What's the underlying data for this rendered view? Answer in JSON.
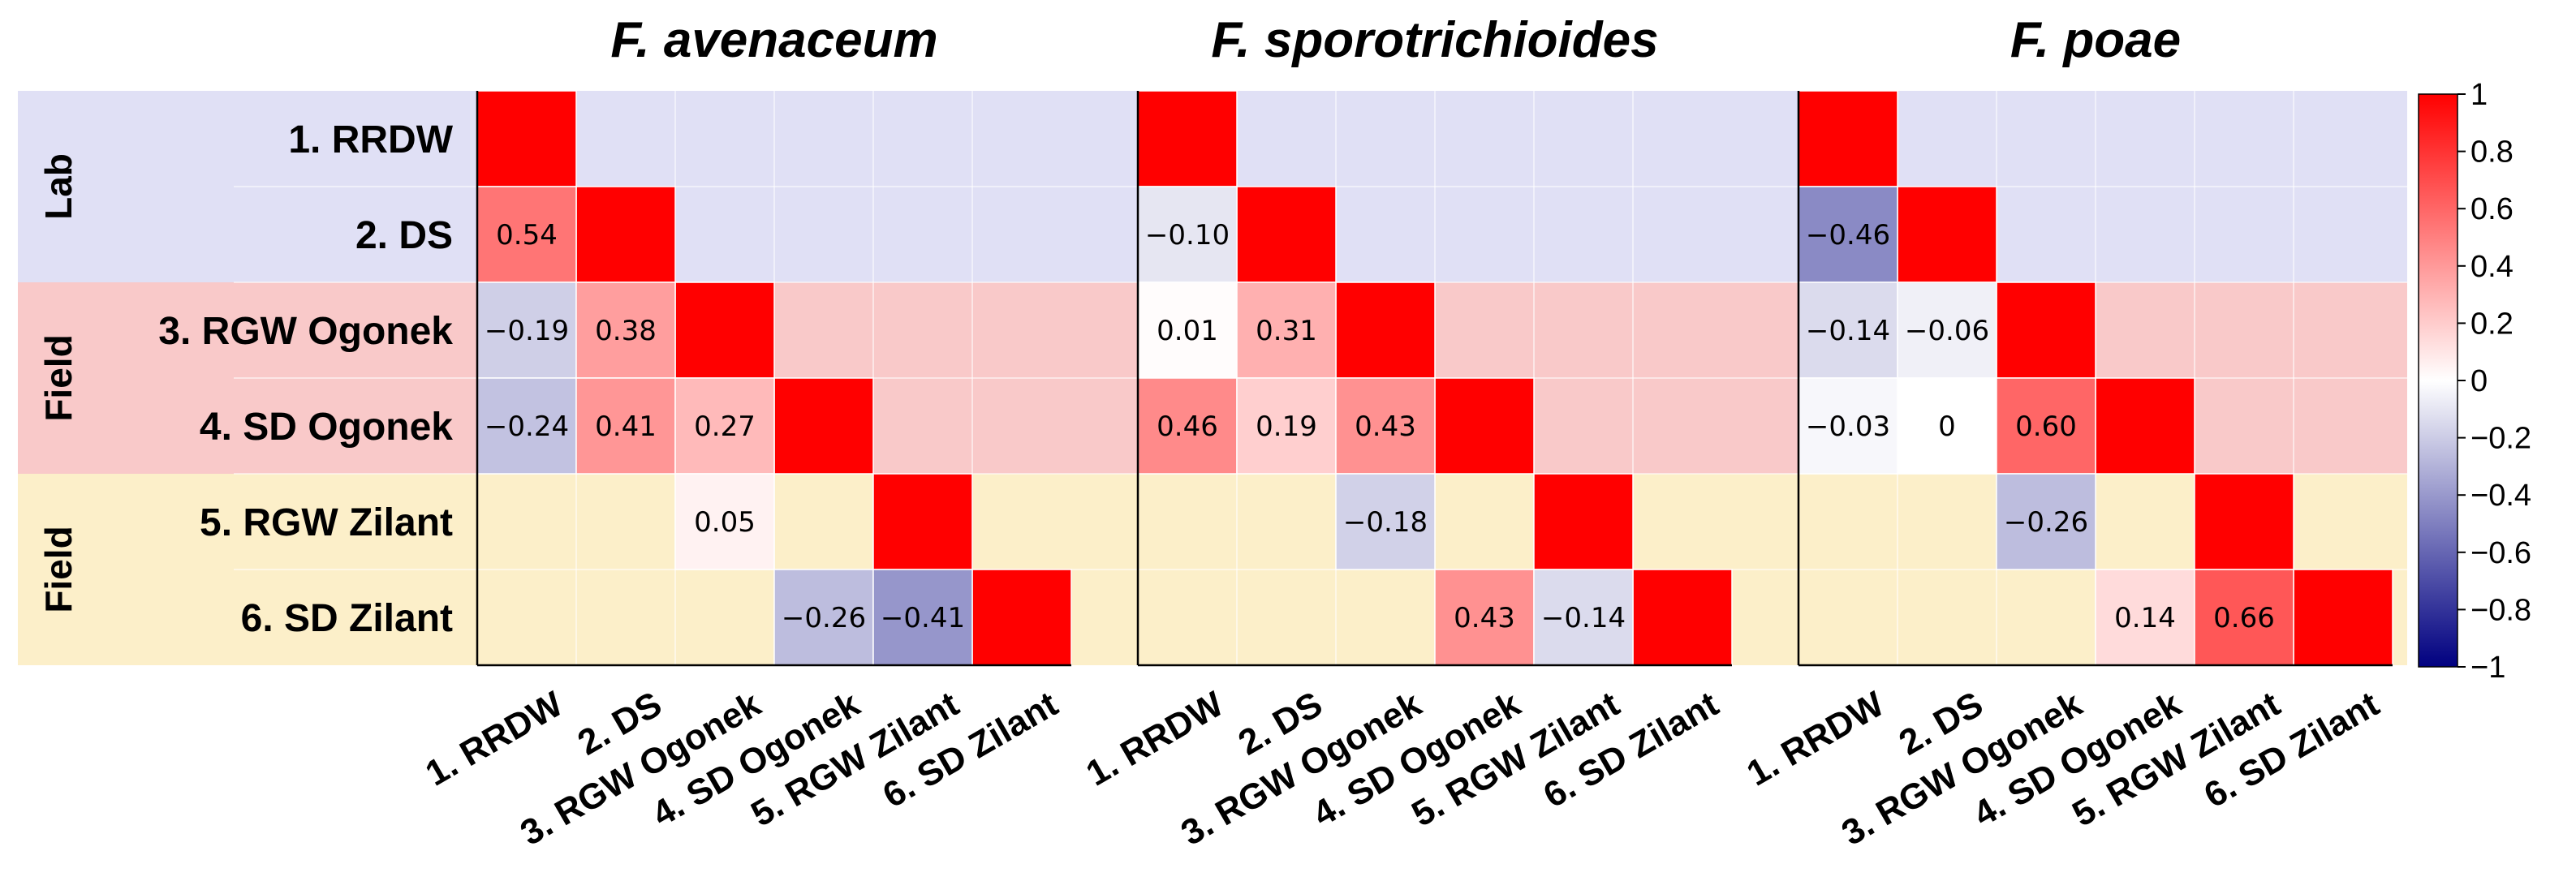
{
  "chart_data": {
    "type": "heatmap",
    "variables": [
      "1. RRDW",
      "2. DS",
      "3. RGW Ogonek",
      "4. SD Ogonek",
      "5. RGW Zilant",
      "6. SD Zilant"
    ],
    "row_groups": [
      {
        "label": "Lab",
        "rows": [
          0,
          1
        ],
        "color": "#e0e0f5"
      },
      {
        "label": "Field",
        "rows": [
          2,
          3
        ],
        "color": "#f9c9c9"
      },
      {
        "label": "Field",
        "rows": [
          4,
          5
        ],
        "color": "#fcefc9"
      }
    ],
    "colorbar": {
      "min": -1,
      "max": 1,
      "ticks": [
        "1",
        "0.8",
        "0.6",
        "0.4",
        "0.2",
        "0",
        "−0.2",
        "−0.4",
        "−0.6",
        "−0.8",
        "−1"
      ],
      "colors": {
        "low": "#000080",
        "mid": "#ffffff",
        "high": "#ff0000"
      }
    },
    "panels": [
      {
        "title": "F. avenaceum",
        "cells": [
          {
            "row": 1,
            "col": 0,
            "value": 0.54,
            "label": "0.54"
          },
          {
            "row": 2,
            "col": 0,
            "value": -0.19,
            "label": "−0.19"
          },
          {
            "row": 2,
            "col": 1,
            "value": 0.38,
            "label": "0.38"
          },
          {
            "row": 3,
            "col": 0,
            "value": -0.24,
            "label": "−0.24"
          },
          {
            "row": 3,
            "col": 1,
            "value": 0.41,
            "label": "0.41"
          },
          {
            "row": 3,
            "col": 2,
            "value": 0.27,
            "label": "0.27"
          },
          {
            "row": 4,
            "col": 2,
            "value": 0.05,
            "label": "0.05"
          },
          {
            "row": 5,
            "col": 3,
            "value": -0.26,
            "label": "−0.26"
          },
          {
            "row": 5,
            "col": 4,
            "value": -0.41,
            "label": "−0.41"
          }
        ]
      },
      {
        "title": "F. sporotrichioides",
        "cells": [
          {
            "row": 1,
            "col": 0,
            "value": -0.1,
            "label": "−0.10"
          },
          {
            "row": 2,
            "col": 0,
            "value": 0.01,
            "label": "0.01"
          },
          {
            "row": 2,
            "col": 1,
            "value": 0.31,
            "label": "0.31"
          },
          {
            "row": 3,
            "col": 0,
            "value": 0.46,
            "label": "0.46"
          },
          {
            "row": 3,
            "col": 1,
            "value": 0.19,
            "label": "0.19"
          },
          {
            "row": 3,
            "col": 2,
            "value": 0.43,
            "label": "0.43"
          },
          {
            "row": 4,
            "col": 2,
            "value": -0.18,
            "label": "−0.18"
          },
          {
            "row": 5,
            "col": 3,
            "value": 0.43,
            "label": "0.43"
          },
          {
            "row": 5,
            "col": 4,
            "value": -0.14,
            "label": "−0.14"
          }
        ]
      },
      {
        "title": "F. poae",
        "cells": [
          {
            "row": 1,
            "col": 0,
            "value": -0.46,
            "label": "−0.46"
          },
          {
            "row": 2,
            "col": 0,
            "value": -0.14,
            "label": "−0.14"
          },
          {
            "row": 2,
            "col": 1,
            "value": -0.06,
            "label": "−0.06"
          },
          {
            "row": 3,
            "col": 0,
            "value": -0.03,
            "label": "−0.03"
          },
          {
            "row": 3,
            "col": 1,
            "value": 0,
            "label": "0"
          },
          {
            "row": 3,
            "col": 2,
            "value": 0.6,
            "label": "0.60"
          },
          {
            "row": 4,
            "col": 2,
            "value": -0.26,
            "label": "−0.26"
          },
          {
            "row": 5,
            "col": 3,
            "value": 0.14,
            "label": "0.14"
          },
          {
            "row": 5,
            "col": 4,
            "value": 0.66,
            "label": "0.66"
          }
        ]
      }
    ]
  }
}
